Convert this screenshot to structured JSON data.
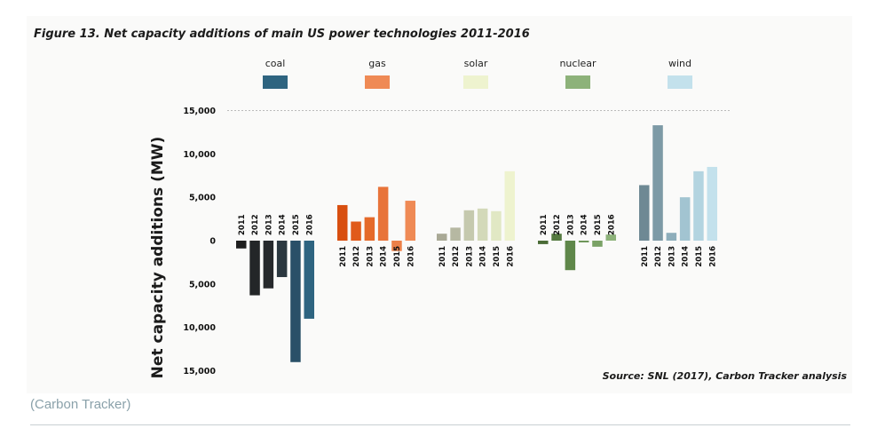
{
  "chart_data": {
    "type": "bar",
    "title": "Figure 13. Net capacity additions of main US power technologies 2011-2016",
    "ylabel": "Net capacity additions (MW)",
    "ylim": [
      -15000,
      15000
    ],
    "yticks": [
      {
        "value": 15000,
        "label": "15,000"
      },
      {
        "value": 10000,
        "label": "10,000"
      },
      {
        "value": 5000,
        "label": "5,000"
      },
      {
        "value": 0,
        "label": "0"
      },
      {
        "value": -5000,
        "label": "5,000"
      },
      {
        "value": -10000,
        "label": "10,000"
      },
      {
        "value": -15000,
        "label": "15,000"
      }
    ],
    "categories": [
      "2011",
      "2012",
      "2013",
      "2014",
      "2015",
      "2016"
    ],
    "series": [
      {
        "name": "coal",
        "color": "#2e6480",
        "bar_colors": [
          "#1f1f1f",
          "#232628",
          "#26292c",
          "#2b3840",
          "#2a5068",
          "#2e6480"
        ],
        "values": [
          -900,
          -6300,
          -5500,
          -4200,
          -14000,
          -9000
        ]
      },
      {
        "name": "gas",
        "color": "#ef8a55",
        "bar_colors": [
          "#d84f10",
          "#e05a1a",
          "#e56a2a",
          "#e8743a",
          "#ec8048",
          "#ef8a55"
        ],
        "values": [
          4100,
          2200,
          2700,
          6200,
          -1200,
          4600
        ]
      },
      {
        "name": "solar",
        "color": "#eef3cf",
        "bar_colors": [
          "#a9a996",
          "#b6b8a2",
          "#c5c9ae",
          "#d3d9b9",
          "#e1e8c4",
          "#eef3cf"
        ],
        "values": [
          800,
          1500,
          3500,
          3700,
          3400,
          8000
        ]
      },
      {
        "name": "nuclear",
        "color": "#8db27a",
        "bar_colors": [
          "#4a6b36",
          "#557a40",
          "#5f874a",
          "#6b9456",
          "#7aa266",
          "#8db27a"
        ],
        "values": [
          -400,
          800,
          -3400,
          -200,
          -700,
          700
        ]
      },
      {
        "name": "wind",
        "color": "#c3e1ec",
        "bar_colors": [
          "#6e8994",
          "#7d9aa6",
          "#8eaebb",
          "#a2c4d1",
          "#b3d4e0",
          "#c3e1ec"
        ],
        "values": [
          6400,
          13300,
          900,
          5000,
          8000,
          8500
        ]
      }
    ],
    "legend_position": "top",
    "source": "Source: SNL (2017), Carbon Tracker analysis"
  },
  "caption": "(Carbon Tracker)"
}
